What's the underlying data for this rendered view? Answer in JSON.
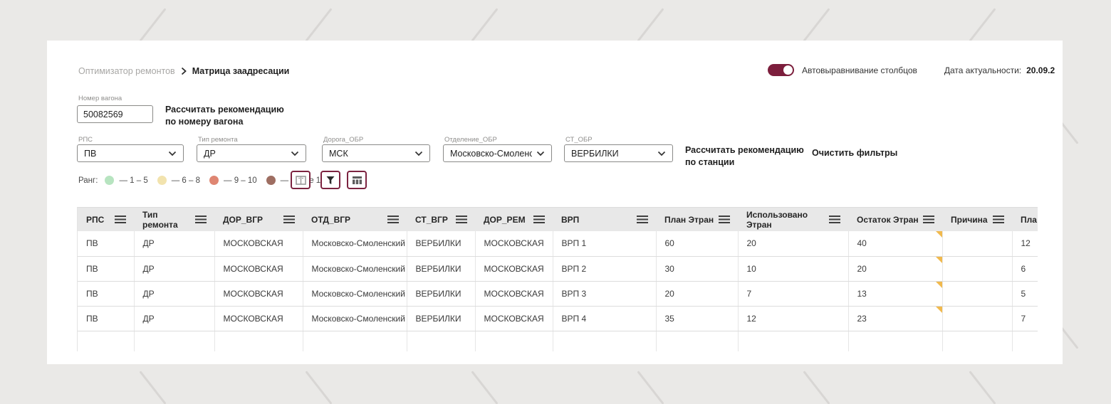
{
  "colors": {
    "accent": "#7c1e3c",
    "note_corner": "#f1b94d",
    "page_bg": "#eae9e7",
    "header_row_bg": "#e8e8e8"
  },
  "breadcrumb": {
    "parent": "Оптимизатор ремонтов",
    "current": "Матрица заадресации"
  },
  "topbar": {
    "toggle_label": "Автовыравнивание столбцов",
    "toggle_state": "on",
    "date_label": "Дата актуальности:",
    "date_value": "20.09.2"
  },
  "wagon": {
    "label": "Номер вагона",
    "value": "50082569",
    "button_line1": "Рассчитать рекомендацию",
    "button_line2": "по номеру вагона"
  },
  "filters": [
    {
      "label": "РПС",
      "value": "ПВ"
    },
    {
      "label": "Тип ремонта",
      "value": "ДР"
    },
    {
      "label": "Дорога_ОБР",
      "value": "МСК"
    },
    {
      "label": "Отделение_ОБР",
      "value": "Московско-Смоленский"
    },
    {
      "label": "СТ_ОБР",
      "value": "ВЕРБИЛКИ"
    }
  ],
  "actions": {
    "station_line1": "Рассчитать рекомендацию",
    "station_line2": "по станции",
    "clear_filters": "Очистить фильтры"
  },
  "legend": {
    "title": "Ранг:",
    "items": [
      {
        "color": "#b7e4c0",
        "label": "— 1 – 5"
      },
      {
        "color": "#f2e3ae",
        "label": "— 6 – 8"
      },
      {
        "color": "#df8672",
        "label": "— 9 – 10"
      },
      {
        "color": "#9e6e62",
        "label": "— более 10"
      }
    ]
  },
  "icon_buttons": [
    {
      "icon": "columns-view-icon"
    },
    {
      "icon": "filter-icon"
    },
    {
      "icon": "table-columns-icon"
    }
  ],
  "table": {
    "columns": [
      "РПС",
      "Тип ремонта",
      "ДОР_ВГР",
      "ОТД_ВГР",
      "СТ_ВГР",
      "ДОР_РЕМ",
      "ВРП",
      "План Этран",
      "Использовано Этран",
      "Остаток Этран",
      "Причина",
      "Пла"
    ],
    "rows": [
      [
        "ПВ",
        "ДР",
        "МОСКОВСКАЯ",
        "Московско-Смоленский",
        "ВЕРБИЛКИ",
        "МОСКОВСКАЯ",
        "ВРП 1",
        "60",
        "20",
        "40",
        "",
        "12"
      ],
      [
        "ПВ",
        "ДР",
        "МОСКОВСКАЯ",
        "Московско-Смоленский",
        "ВЕРБИЛКИ",
        "МОСКОВСКАЯ",
        "ВРП 2",
        "30",
        "10",
        "20",
        "",
        "6"
      ],
      [
        "ПВ",
        "ДР",
        "МОСКОВСКАЯ",
        "Московско-Смоленский",
        "ВЕРБИЛКИ",
        "МОСКОВСКАЯ",
        "ВРП 3",
        "20",
        "7",
        "13",
        "",
        "5"
      ],
      [
        "ПВ",
        "ДР",
        "МОСКОВСКАЯ",
        "Московско-Смоленский",
        "ВЕРБИЛКИ",
        "МОСКОВСКАЯ",
        "ВРП 4",
        "35",
        "12",
        "23",
        "",
        "7"
      ]
    ]
  }
}
